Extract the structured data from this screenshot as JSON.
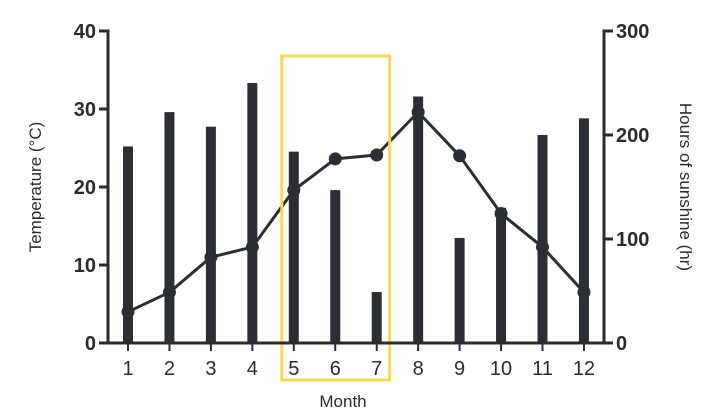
{
  "chart_data": {
    "type": "bar+line",
    "categories": [
      "1",
      "2",
      "3",
      "4",
      "5",
      "6",
      "7",
      "8",
      "9",
      "10",
      "11",
      "12"
    ],
    "xlabel": "Month",
    "y_left": {
      "label": "Temperature (°C)",
      "range": [
        0,
        40
      ],
      "ticks": [
        "0",
        "10",
        "20",
        "30",
        "40"
      ]
    },
    "y_right": {
      "label": "Hours of sunshine (hr)",
      "range": [
        0,
        300
      ],
      "ticks": [
        "0",
        "100",
        "200",
        "300"
      ]
    },
    "series": [
      {
        "axis": "right",
        "kind": "bar",
        "values": [
          189,
          222,
          208,
          250,
          184,
          147,
          49,
          237,
          101,
          130,
          200,
          216
        ]
      },
      {
        "axis": "left",
        "kind": "line",
        "values": [
          4,
          6.5,
          11,
          12.3,
          19.6,
          23.6,
          24.1,
          29.6,
          24,
          16.6,
          12.3,
          6.5
        ]
      }
    ],
    "highlight": {
      "from": "5",
      "to": "7",
      "color": "#f2dc50"
    },
    "colors": {
      "bar": "#2d2e33",
      "line": "#2d2e33",
      "axis": "#2b2b2b"
    },
    "grid": false,
    "legend": "none"
  }
}
